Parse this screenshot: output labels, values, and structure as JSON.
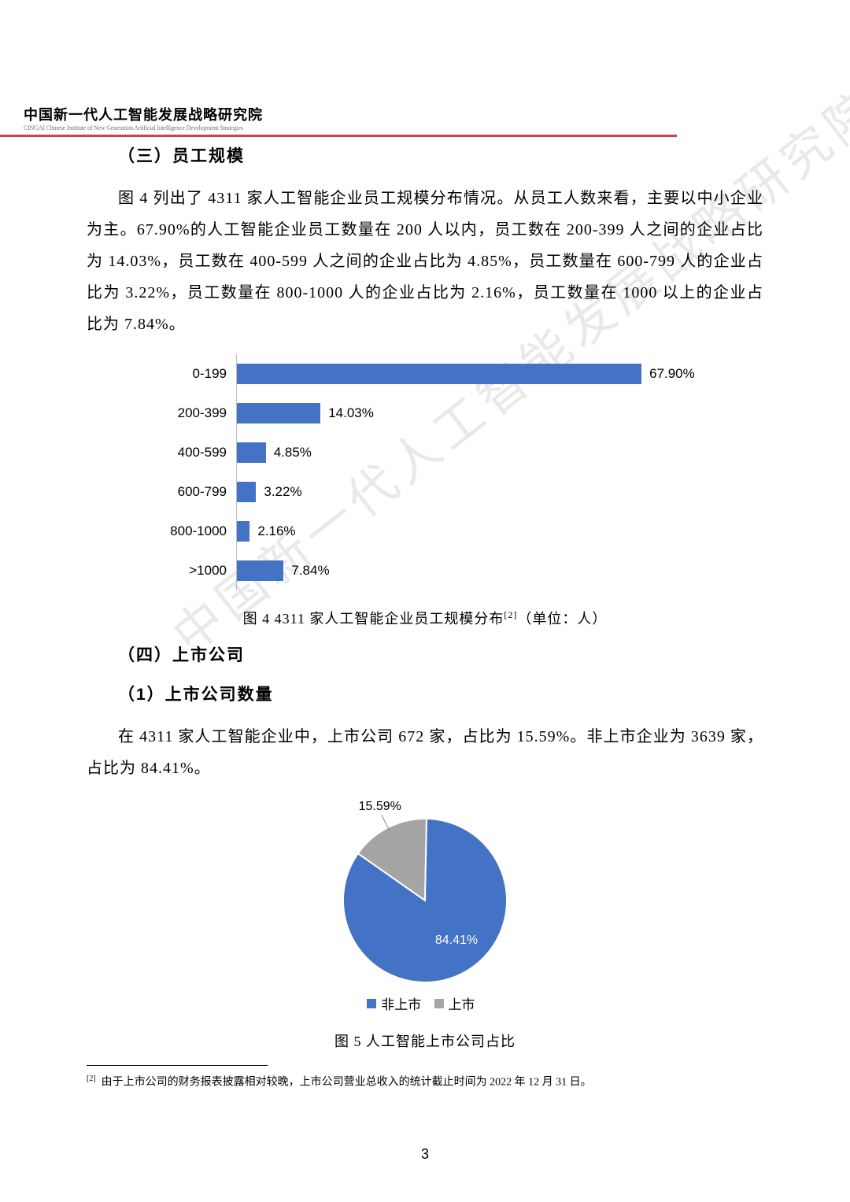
{
  "header": {
    "org_cn": "中国新一代人工智能发展战略研究院",
    "org_en": "CINGAI  Chinese Institute of New Generation Artificial Intelligence Development Strategies"
  },
  "watermark": "中国新一代人工智能发展战略研究院",
  "section3": {
    "heading": "（三）员工规模",
    "paragraph": "图 4 列出了 4311 家人工智能企业员工规模分布情况。从员工人数来看，主要以中小企业为主。67.90%的人工智能企业员工数量在 200 人以内，员工数在 200-399 人之间的企业占比为 14.03%，员工数在 400-599 人之间的企业占比为 4.85%，员工数量在 600-799 人的企业占比为 3.22%，员工数量在 800-1000 人的企业占比为 2.16%，员工数量在 1000 以上的企业占比为 7.84%。"
  },
  "bar_chart": {
    "type": "bar-horizontal",
    "bar_color": "#4472c4",
    "axis_color": "#bfbfbf",
    "label_fontsize": 17,
    "max_value": 70,
    "rows": [
      {
        "category": "0-199",
        "value": 67.9,
        "label": "67.90%"
      },
      {
        "category": "200-399",
        "value": 14.03,
        "label": "14.03%"
      },
      {
        "category": "400-599",
        "value": 4.85,
        "label": "4.85%"
      },
      {
        "category": "600-799",
        "value": 3.22,
        "label": "3.22%"
      },
      {
        "category": "800-1000",
        "value": 2.16,
        "label": "2.16%"
      },
      {
        "category": ">1000",
        "value": 7.84,
        "label": "7.84%"
      }
    ],
    "caption_prefix": "图 4   4311 家人工智能企业员工规模分布",
    "caption_sup": "[2]",
    "caption_suffix": "（单位：人）"
  },
  "section4": {
    "heading": "（四）上市公司",
    "sub_heading": "（1）上市公司数量",
    "paragraph": "在 4311 家人工智能企业中，上市公司 672 家，占比为 15.59%。非上市企业为 3639 家，占比为 84.41%。"
  },
  "pie_chart": {
    "type": "pie",
    "slices": [
      {
        "name": "非上市",
        "value": 84.41,
        "label": "84.41%",
        "color": "#4472c4"
      },
      {
        "name": "上市",
        "value": 15.59,
        "label": "15.59%",
        "color": "#a5a5a5"
      }
    ],
    "legend_prefix": "■",
    "caption": "图 5   人工智能上市公司占比",
    "label_fontsize": 16,
    "label_color_majority": "#ffffff",
    "label_color_minority": "#000000",
    "radius": 104
  },
  "footnote": {
    "marker": "[2]",
    "text": "由于上市公司的财务报表披露相对较晚，上市公司营业总收入的统计截止时间为 2022 年 12 月 31 日。"
  },
  "page_number": "3"
}
